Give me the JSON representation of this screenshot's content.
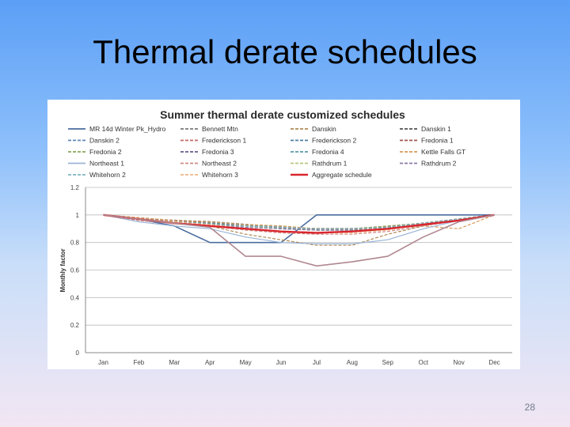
{
  "slide": {
    "title": "Thermal derate schedules",
    "page_number": "28"
  },
  "chart_data": {
    "type": "line",
    "title": "Summer thermal derate customized schedules",
    "xlabel": "",
    "ylabel": "Monthly factor",
    "ylim": [
      0,
      1.2
    ],
    "yticks": [
      "0",
      "0.2",
      "0.4",
      "0.6",
      "0.8",
      "1",
      "1.2"
    ],
    "categories": [
      "Jan",
      "Feb",
      "Mar",
      "Apr",
      "May",
      "Jun",
      "Jul",
      "Aug",
      "Sep",
      "Oct",
      "Nov",
      "Dec"
    ],
    "grid": true,
    "legend_position": "top",
    "series": [
      {
        "name": "MR 14d Winter Pk_Hydro",
        "color": "#4a6da0",
        "dash": "solid",
        "width": 1.6,
        "values": [
          1,
          0.97,
          0.92,
          0.8,
          0.8,
          0.8,
          1,
          1,
          1,
          1,
          1,
          1
        ]
      },
      {
        "name": "Bennett Mtn",
        "color": "#7a7a7a",
        "dash": "dash",
        "width": 2,
        "values": [
          1,
          0.97,
          0.96,
          0.95,
          0.93,
          0.91,
          0.9,
          0.9,
          0.91,
          0.94,
          0.97,
          1
        ]
      },
      {
        "name": "Danskin",
        "color": "#b08a55",
        "dash": "dash",
        "width": 1.2,
        "values": [
          1,
          0.97,
          0.95,
          0.92,
          0.86,
          0.82,
          0.78,
          0.78,
          0.86,
          0.92,
          0.97,
          1
        ]
      },
      {
        "name": "Danskin 1",
        "color": "#505050",
        "dash": "dash",
        "width": 1.2,
        "values": [
          1,
          0.97,
          0.95,
          0.94,
          0.92,
          0.9,
          0.89,
          0.89,
          0.9,
          0.93,
          0.96,
          1
        ]
      },
      {
        "name": "Danskin 2",
        "color": "#5f86b8",
        "dash": "dash",
        "width": 1.2,
        "values": [
          1,
          0.97,
          0.95,
          0.93,
          0.92,
          0.91,
          0.9,
          0.9,
          0.91,
          0.93,
          0.96,
          1
        ]
      },
      {
        "name": "Frederickson 1",
        "color": "#c46a64",
        "dash": "dash",
        "width": 1.2,
        "values": [
          1,
          0.98,
          0.96,
          0.94,
          0.93,
          0.91,
          0.9,
          0.9,
          0.92,
          0.94,
          0.97,
          1
        ]
      },
      {
        "name": "Frederickson 2",
        "color": "#4c7fa4",
        "dash": "dash",
        "width": 1.2,
        "values": [
          1,
          0.97,
          0.95,
          0.93,
          0.92,
          0.9,
          0.89,
          0.89,
          0.9,
          0.93,
          0.96,
          1
        ]
      },
      {
        "name": "Fredonia 1",
        "color": "#a0524c",
        "dash": "dash",
        "width": 1.2,
        "values": [
          1,
          0.97,
          0.95,
          0.94,
          0.92,
          0.91,
          0.9,
          0.9,
          0.91,
          0.94,
          0.97,
          1
        ]
      },
      {
        "name": "Fredonia 2",
        "color": "#8aa65c",
        "dash": "dash",
        "width": 1.2,
        "values": [
          1,
          0.97,
          0.95,
          0.94,
          0.93,
          0.92,
          0.9,
          0.9,
          0.92,
          0.94,
          0.97,
          1
        ]
      },
      {
        "name": "Fredonia 3",
        "color": "#6a5a8c",
        "dash": "dash",
        "width": 1.2,
        "values": [
          1,
          0.97,
          0.95,
          0.93,
          0.92,
          0.9,
          0.89,
          0.89,
          0.9,
          0.93,
          0.96,
          1
        ]
      },
      {
        "name": "Fredonia 4",
        "color": "#5a9aaa",
        "dash": "dash",
        "width": 1.2,
        "values": [
          1,
          0.97,
          0.95,
          0.94,
          0.93,
          0.91,
          0.9,
          0.9,
          0.91,
          0.94,
          0.97,
          1
        ]
      },
      {
        "name": "Kettle Falls GT",
        "color": "#d89a58",
        "dash": "dash",
        "width": 1.2,
        "values": [
          1,
          0.98,
          0.96,
          0.95,
          0.93,
          0.92,
          0.9,
          0.9,
          0.9,
          0.92,
          0.9,
          1
        ]
      },
      {
        "name": "Northeast 1",
        "color": "#9ab4d6",
        "dash": "solid",
        "width": 1.2,
        "values": [
          1,
          0.95,
          0.92,
          0.9,
          0.84,
          0.8,
          0.79,
          0.79,
          0.82,
          0.9,
          0.96,
          1
        ]
      },
      {
        "name": "Northeast 2",
        "color": "#cf8a86",
        "dash": "dash",
        "width": 1.2,
        "values": [
          1,
          0.96,
          0.94,
          0.92,
          0.89,
          0.87,
          0.86,
          0.86,
          0.88,
          0.92,
          0.96,
          1
        ]
      },
      {
        "name": "Rathdrum 1",
        "color": "#b6c97f",
        "dash": "dash",
        "width": 1.2,
        "values": [
          1,
          0.97,
          0.95,
          0.93,
          0.92,
          0.9,
          0.89,
          0.89,
          0.9,
          0.93,
          0.96,
          1
        ]
      },
      {
        "name": "Rathdrum 2",
        "color": "#8a7ba8",
        "dash": "dash",
        "width": 1.2,
        "values": [
          1,
          0.97,
          0.95,
          0.93,
          0.91,
          0.9,
          0.89,
          0.89,
          0.9,
          0.93,
          0.96,
          1
        ]
      },
      {
        "name": "Whitehorn 2",
        "color": "#7fb5c2",
        "dash": "dash",
        "width": 1.2,
        "values": [
          1,
          0.97,
          0.95,
          0.93,
          0.92,
          0.91,
          0.9,
          0.9,
          0.91,
          0.94,
          0.97,
          1
        ]
      },
      {
        "name": "Whitehorn 3",
        "color": "#f0b888",
        "dash": "dash",
        "width": 1.2,
        "values": [
          1,
          0.97,
          0.95,
          0.93,
          0.9,
          0.88,
          0.87,
          0.87,
          0.89,
          0.93,
          0.96,
          1
        ]
      },
      {
        "name": "Aggregate schedule",
        "color": "#d9262e",
        "dash": "solid",
        "width": 2.4,
        "values": [
          1,
          0.97,
          0.94,
          0.92,
          0.9,
          0.88,
          0.87,
          0.88,
          0.9,
          0.93,
          0.96,
          1
        ]
      },
      {
        "name": "",
        "color": "#b08890",
        "dash": "solid",
        "width": 1.6,
        "values": [
          1,
          0.97,
          0.94,
          0.91,
          0.7,
          0.7,
          0.63,
          0.66,
          0.7,
          0.84,
          0.95,
          1
        ]
      }
    ]
  }
}
